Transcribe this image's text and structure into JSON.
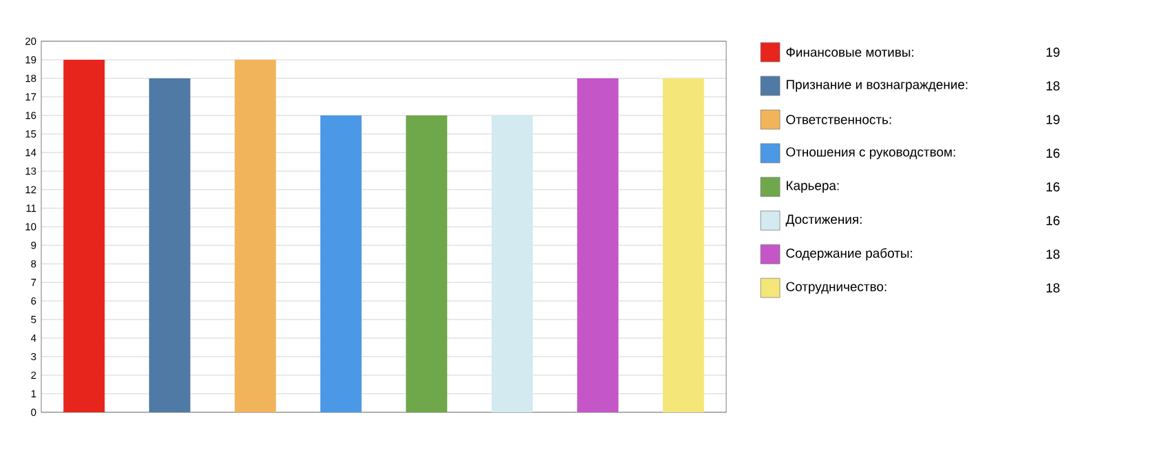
{
  "chart_data": {
    "type": "bar",
    "categories": [
      null,
      null,
      null,
      null,
      null,
      null,
      null,
      null
    ],
    "series": [
      {
        "name": "Финансовые мотивы:",
        "color": "#e8251c",
        "values": [
          19,
          null,
          null,
          null,
          null,
          null,
          null,
          null
        ]
      },
      {
        "name": "Признание и вознаграждение:",
        "color": "#4f7aa6",
        "values": [
          null,
          18,
          null,
          null,
          null,
          null,
          null,
          null
        ]
      },
      {
        "name": "Ответственность:",
        "color": "#f2b45a",
        "values": [
          null,
          null,
          19,
          null,
          null,
          null,
          null,
          null
        ]
      },
      {
        "name": "Отношения с руководством:",
        "color": "#4a98e6",
        "values": [
          null,
          null,
          null,
          16,
          null,
          null,
          null,
          null
        ]
      },
      {
        "name": "Карьера:",
        "color": "#6fa84a",
        "values": [
          null,
          null,
          null,
          null,
          16,
          null,
          null,
          null
        ]
      },
      {
        "name": "Достижения:",
        "color": "#d2eaf0",
        "values": [
          null,
          null,
          null,
          null,
          null,
          16,
          null,
          null
        ]
      },
      {
        "name": "Содержание работы:",
        "color": "#c456c8",
        "values": [
          null,
          null,
          null,
          null,
          null,
          null,
          18,
          null
        ]
      },
      {
        "name": "Сотрудничество:",
        "color": "#f5e67a",
        "values": [
          null,
          null,
          null,
          null,
          null,
          null,
          null,
          18
        ]
      }
    ],
    "annotations": [
      "19",
      "18",
      "19",
      "16",
      "16",
      "16",
      "18",
      "18"
    ],
    "ylim": [
      0,
      20
    ],
    "yticks": [
      0,
      1,
      2,
      3,
      4,
      5,
      6,
      7,
      8,
      9,
      10,
      11,
      12,
      13,
      14,
      15,
      16,
      17,
      18,
      19,
      20
    ],
    "grid": "y",
    "legend": "right"
  }
}
